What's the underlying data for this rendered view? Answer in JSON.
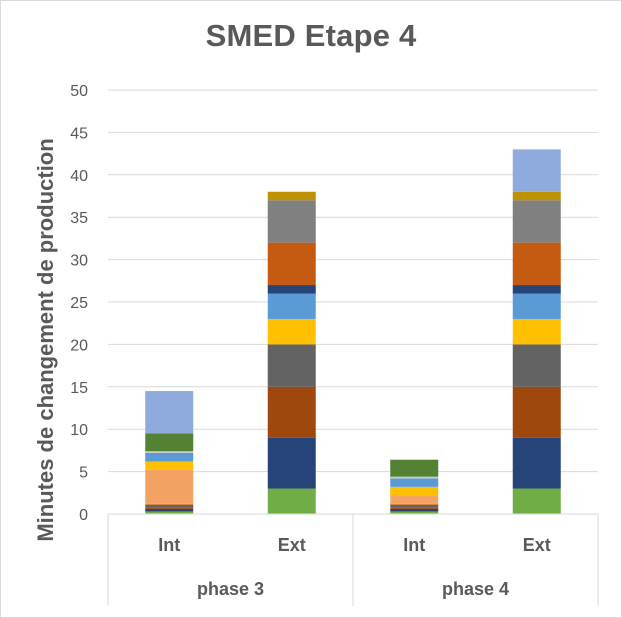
{
  "chart_data": {
    "type": "bar",
    "stacked": true,
    "title": "SMED Etape 4",
    "xlabel": "",
    "ylabel": "Minutes  de changement de production",
    "ylim": [
      0,
      50
    ],
    "yticks": [
      0,
      5,
      10,
      15,
      20,
      25,
      30,
      35,
      40,
      45,
      50
    ],
    "grid": true,
    "legend": "none",
    "groups": [
      {
        "label": "phase 3",
        "categories": [
          "Int",
          "Ext"
        ]
      },
      {
        "label": "phase 4",
        "categories": [
          "Int",
          "Ext"
        ]
      }
    ],
    "categories": [
      "Int",
      "Ext",
      "Int",
      "Ext"
    ],
    "series": [
      {
        "color": "#70ad47",
        "values": [
          0.3,
          3,
          0.3,
          3
        ]
      },
      {
        "color": "#264478",
        "values": [
          0.3,
          6,
          0.3,
          6
        ]
      },
      {
        "color": "#9e480e",
        "values": [
          0.2,
          6,
          0.2,
          6
        ]
      },
      {
        "color": "#636363",
        "values": [
          0.3,
          5,
          0.3,
          5
        ]
      },
      {
        "color": "#ffc000",
        "values": [
          0,
          3,
          0,
          3
        ]
      },
      {
        "color": "#5b9bd5",
        "values": [
          0,
          3,
          0,
          3
        ]
      },
      {
        "color": "#264478",
        "values": [
          0,
          1,
          0,
          1
        ]
      },
      {
        "color": "#c55a11",
        "values": [
          0,
          5,
          0,
          5
        ]
      },
      {
        "color": "#ed7d31",
        "values": [
          0.1,
          0,
          0.1,
          0
        ]
      },
      {
        "color": "#f4a261",
        "values": [
          4,
          0,
          1,
          0
        ]
      },
      {
        "color": "#ffc000",
        "values": [
          1,
          0,
          1,
          0
        ]
      },
      {
        "color": "#5b9bd5",
        "values": [
          1,
          0,
          1,
          0
        ]
      },
      {
        "color": "#c9c9c9",
        "values": [
          0.2,
          0,
          0.2,
          0
        ]
      },
      {
        "color": "#548235",
        "values": [
          2.1,
          0,
          2,
          0
        ]
      },
      {
        "color": "#808080",
        "values": [
          0,
          5,
          0,
          5
        ]
      },
      {
        "color": "#bf9000",
        "values": [
          0,
          1,
          0,
          1
        ]
      },
      {
        "color": "#8faadc",
        "values": [
          5,
          0,
          0,
          5
        ]
      }
    ]
  }
}
